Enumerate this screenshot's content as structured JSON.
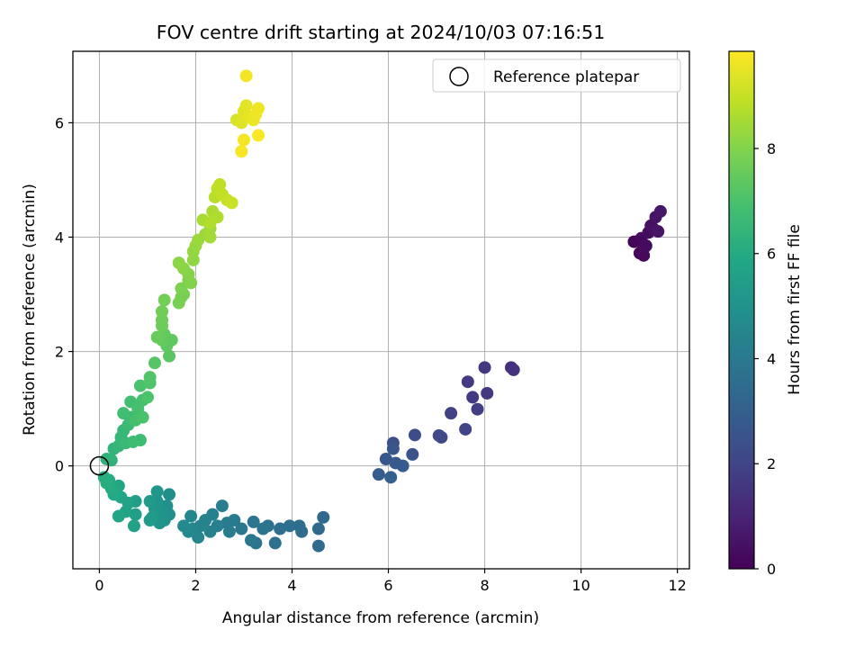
{
  "chart_data": {
    "type": "scatter",
    "title": "FOV centre drift starting at 2024/10/03 07:16:51",
    "xlabel": "Angular distance from reference (arcmin)",
    "ylabel": "Rotation from reference (arcmin)",
    "xlim": [
      -0.55,
      12.25
    ],
    "ylim": [
      -1.8,
      7.25
    ],
    "xticks": [
      0,
      2,
      4,
      6,
      8,
      10,
      12
    ],
    "yticks": [
      0,
      2,
      4,
      6
    ],
    "grid": true,
    "legend": {
      "placement": "top-right",
      "entries": [
        "Reference platepar"
      ]
    },
    "reference_point": {
      "label": "Reference platepar",
      "x": 0,
      "y": 0
    },
    "colorbar": {
      "label": "Hours from first FF file",
      "colormap": "viridis",
      "range": [
        0,
        9.85
      ],
      "ticks": [
        0,
        2,
        4,
        6,
        8
      ]
    },
    "points": [
      {
        "x": 11.1,
        "y": 3.92,
        "c": 0.1
      },
      {
        "x": 11.25,
        "y": 3.98,
        "c": 0.2
      },
      {
        "x": 11.3,
        "y": 3.8,
        "c": 0.3
      },
      {
        "x": 11.22,
        "y": 3.72,
        "c": 0.15
      },
      {
        "x": 11.3,
        "y": 3.68,
        "c": 0.25
      },
      {
        "x": 11.4,
        "y": 4.08,
        "c": 0.35
      },
      {
        "x": 11.45,
        "y": 4.2,
        "c": 0.4
      },
      {
        "x": 11.5,
        "y": 4.15,
        "c": 0.45
      },
      {
        "x": 11.55,
        "y": 4.35,
        "c": 0.5
      },
      {
        "x": 11.65,
        "y": 4.45,
        "c": 0.6
      },
      {
        "x": 11.6,
        "y": 4.1,
        "c": 0.55
      },
      {
        "x": 11.35,
        "y": 3.85,
        "c": 0.3
      },
      {
        "x": 8.55,
        "y": 1.72,
        "c": 1.4
      },
      {
        "x": 8.6,
        "y": 1.68,
        "c": 1.45
      },
      {
        "x": 8.0,
        "y": 1.72,
        "c": 1.55
      },
      {
        "x": 7.65,
        "y": 1.47,
        "c": 1.65
      },
      {
        "x": 8.05,
        "y": 1.27,
        "c": 1.6
      },
      {
        "x": 7.75,
        "y": 1.2,
        "c": 1.7
      },
      {
        "x": 7.85,
        "y": 0.99,
        "c": 1.8
      },
      {
        "x": 7.3,
        "y": 0.92,
        "c": 1.9
      },
      {
        "x": 7.6,
        "y": 0.64,
        "c": 2.0
      },
      {
        "x": 7.05,
        "y": 0.53,
        "c": 2.1
      },
      {
        "x": 7.1,
        "y": 0.5,
        "c": 2.15
      },
      {
        "x": 6.55,
        "y": 0.54,
        "c": 2.3
      },
      {
        "x": 6.5,
        "y": 0.2,
        "c": 2.5
      },
      {
        "x": 6.1,
        "y": 0.4,
        "c": 2.4
      },
      {
        "x": 6.1,
        "y": 0.3,
        "c": 2.6
      },
      {
        "x": 5.95,
        "y": 0.12,
        "c": 2.7
      },
      {
        "x": 6.15,
        "y": 0.05,
        "c": 2.75
      },
      {
        "x": 6.3,
        "y": 0.0,
        "c": 2.8
      },
      {
        "x": 5.8,
        "y": -0.15,
        "c": 2.9
      },
      {
        "x": 6.05,
        "y": -0.2,
        "c": 3.0
      },
      {
        "x": 4.65,
        "y": -0.9,
        "c": 3.3
      },
      {
        "x": 4.55,
        "y": -1.1,
        "c": 3.35
      },
      {
        "x": 4.55,
        "y": -1.4,
        "c": 3.4
      },
      {
        "x": 4.2,
        "y": -1.15,
        "c": 3.45
      },
      {
        "x": 4.15,
        "y": -1.05,
        "c": 3.5
      },
      {
        "x": 3.95,
        "y": -1.05,
        "c": 3.55
      },
      {
        "x": 3.75,
        "y": -1.1,
        "c": 3.6
      },
      {
        "x": 3.65,
        "y": -1.35,
        "c": 3.65
      },
      {
        "x": 3.5,
        "y": -1.05,
        "c": 3.7
      },
      {
        "x": 3.4,
        "y": -1.1,
        "c": 3.75
      },
      {
        "x": 3.25,
        "y": -1.35,
        "c": 3.8
      },
      {
        "x": 3.2,
        "y": -0.98,
        "c": 3.85
      },
      {
        "x": 3.15,
        "y": -1.3,
        "c": 3.9
      },
      {
        "x": 2.95,
        "y": -1.1,
        "c": 3.95
      },
      {
        "x": 2.8,
        "y": -0.95,
        "c": 4.0
      },
      {
        "x": 2.65,
        "y": -1.0,
        "c": 4.05
      },
      {
        "x": 2.7,
        "y": -1.15,
        "c": 4.1
      },
      {
        "x": 2.55,
        "y": -0.7,
        "c": 4.15
      },
      {
        "x": 2.45,
        "y": -1.05,
        "c": 4.2
      },
      {
        "x": 2.35,
        "y": -0.85,
        "c": 4.25
      },
      {
        "x": 2.3,
        "y": -1.15,
        "c": 4.3
      },
      {
        "x": 2.2,
        "y": -0.95,
        "c": 4.35
      },
      {
        "x": 2.1,
        "y": -1.05,
        "c": 4.4
      },
      {
        "x": 2.05,
        "y": -1.25,
        "c": 4.45
      },
      {
        "x": 1.95,
        "y": -1.1,
        "c": 4.5
      },
      {
        "x": 1.9,
        "y": -0.88,
        "c": 4.55
      },
      {
        "x": 1.85,
        "y": -1.15,
        "c": 4.6
      },
      {
        "x": 1.75,
        "y": -1.05,
        "c": 4.65
      },
      {
        "x": 1.45,
        "y": -0.5,
        "c": 4.8
      },
      {
        "x": 1.45,
        "y": -0.85,
        "c": 4.85
      },
      {
        "x": 1.4,
        "y": -0.7,
        "c": 4.9
      },
      {
        "x": 1.35,
        "y": -0.95,
        "c": 4.95
      },
      {
        "x": 1.3,
        "y": -0.8,
        "c": 5.0
      },
      {
        "x": 1.25,
        "y": -1.0,
        "c": 5.05
      },
      {
        "x": 1.2,
        "y": -0.62,
        "c": 5.1
      },
      {
        "x": 1.2,
        "y": -0.45,
        "c": 5.15
      },
      {
        "x": 1.15,
        "y": -0.75,
        "c": 5.2
      },
      {
        "x": 1.1,
        "y": -0.9,
        "c": 5.25
      },
      {
        "x": 1.05,
        "y": -0.62,
        "c": 5.3
      },
      {
        "x": 1.05,
        "y": -0.95,
        "c": 5.35
      },
      {
        "x": 0.75,
        "y": -0.62,
        "c": 5.5
      },
      {
        "x": 0.75,
        "y": -0.85,
        "c": 5.55
      },
      {
        "x": 0.72,
        "y": -1.05,
        "c": 5.6
      },
      {
        "x": 0.6,
        "y": -0.65,
        "c": 5.65
      },
      {
        "x": 0.55,
        "y": -0.8,
        "c": 5.7
      },
      {
        "x": 0.45,
        "y": -0.55,
        "c": 5.75
      },
      {
        "x": 0.4,
        "y": -0.88,
        "c": 5.8
      },
      {
        "x": 0.4,
        "y": -0.35,
        "c": 5.85
      },
      {
        "x": 0.35,
        "y": -0.45,
        "c": 5.9
      },
      {
        "x": 0.3,
        "y": -0.5,
        "c": 5.95
      },
      {
        "x": 0.25,
        "y": -0.4,
        "c": 6.0
      },
      {
        "x": 0.2,
        "y": -0.25,
        "c": 6.05
      },
      {
        "x": 0.15,
        "y": -0.3,
        "c": 6.1
      },
      {
        "x": 0.1,
        "y": -0.2,
        "c": 6.15
      },
      {
        "x": 0.15,
        "y": 0.12,
        "c": 6.3
      },
      {
        "x": 0.25,
        "y": 0.1,
        "c": 6.35
      },
      {
        "x": 0.3,
        "y": 0.3,
        "c": 6.4
      },
      {
        "x": 0.4,
        "y": 0.35,
        "c": 6.45
      },
      {
        "x": 0.45,
        "y": 0.5,
        "c": 6.5
      },
      {
        "x": 0.5,
        "y": 0.62,
        "c": 6.55
      },
      {
        "x": 0.55,
        "y": 0.4,
        "c": 6.6
      },
      {
        "x": 0.6,
        "y": 0.72,
        "c": 6.65
      },
      {
        "x": 0.65,
        "y": 0.85,
        "c": 6.7
      },
      {
        "x": 0.7,
        "y": 0.42,
        "c": 6.72
      },
      {
        "x": 0.85,
        "y": 0.45,
        "c": 6.75
      },
      {
        "x": 0.5,
        "y": 0.92,
        "c": 6.8
      },
      {
        "x": 0.65,
        "y": 1.12,
        "c": 6.85
      },
      {
        "x": 0.75,
        "y": 0.8,
        "c": 6.9
      },
      {
        "x": 0.8,
        "y": 1.0,
        "c": 6.92
      },
      {
        "x": 0.9,
        "y": 1.15,
        "c": 6.95
      },
      {
        "x": 0.85,
        "y": 1.4,
        "c": 7.0
      },
      {
        "x": 0.9,
        "y": 0.85,
        "c": 7.02
      },
      {
        "x": 1.0,
        "y": 1.2,
        "c": 7.05
      },
      {
        "x": 1.05,
        "y": 1.45,
        "c": 7.1
      },
      {
        "x": 1.05,
        "y": 1.55,
        "c": 7.15
      },
      {
        "x": 1.15,
        "y": 1.8,
        "c": 7.2
      },
      {
        "x": 1.45,
        "y": 1.92,
        "c": 7.3
      },
      {
        "x": 1.4,
        "y": 2.1,
        "c": 7.35
      },
      {
        "x": 1.5,
        "y": 2.2,
        "c": 7.4
      },
      {
        "x": 1.35,
        "y": 2.3,
        "c": 7.45
      },
      {
        "x": 1.3,
        "y": 2.2,
        "c": 7.5
      },
      {
        "x": 1.2,
        "y": 2.25,
        "c": 7.55
      },
      {
        "x": 1.3,
        "y": 2.45,
        "c": 7.6
      },
      {
        "x": 1.3,
        "y": 2.55,
        "c": 7.65
      },
      {
        "x": 1.3,
        "y": 2.7,
        "c": 7.7
      },
      {
        "x": 1.35,
        "y": 2.9,
        "c": 7.75
      },
      {
        "x": 1.65,
        "y": 2.85,
        "c": 7.8
      },
      {
        "x": 1.7,
        "y": 2.95,
        "c": 7.82
      },
      {
        "x": 1.75,
        "y": 3.0,
        "c": 7.85
      },
      {
        "x": 1.7,
        "y": 3.1,
        "c": 7.9
      },
      {
        "x": 1.85,
        "y": 3.25,
        "c": 7.95
      },
      {
        "x": 1.9,
        "y": 3.2,
        "c": 8.0
      },
      {
        "x": 1.85,
        "y": 3.35,
        "c": 8.05
      },
      {
        "x": 1.75,
        "y": 3.45,
        "c": 8.1
      },
      {
        "x": 1.65,
        "y": 3.55,
        "c": 8.15
      },
      {
        "x": 1.95,
        "y": 3.6,
        "c": 8.2
      },
      {
        "x": 1.95,
        "y": 3.75,
        "c": 8.25
      },
      {
        "x": 2.0,
        "y": 3.85,
        "c": 8.3
      },
      {
        "x": 2.05,
        "y": 3.95,
        "c": 8.35
      },
      {
        "x": 2.2,
        "y": 4.05,
        "c": 8.4
      },
      {
        "x": 2.3,
        "y": 4.15,
        "c": 8.45
      },
      {
        "x": 2.3,
        "y": 4.0,
        "c": 8.5
      },
      {
        "x": 2.15,
        "y": 4.3,
        "c": 8.55
      },
      {
        "x": 2.35,
        "y": 4.45,
        "c": 8.6
      },
      {
        "x": 2.45,
        "y": 4.35,
        "c": 8.65
      },
      {
        "x": 2.3,
        "y": 4.25,
        "c": 8.7
      },
      {
        "x": 2.4,
        "y": 4.7,
        "c": 8.8
      },
      {
        "x": 2.45,
        "y": 4.85,
        "c": 8.85
      },
      {
        "x": 2.5,
        "y": 4.92,
        "c": 8.9
      },
      {
        "x": 2.55,
        "y": 4.75,
        "c": 8.95
      },
      {
        "x": 2.65,
        "y": 4.65,
        "c": 9.0
      },
      {
        "x": 2.75,
        "y": 4.6,
        "c": 9.05
      },
      {
        "x": 2.85,
        "y": 6.05,
        "c": 9.3
      },
      {
        "x": 2.95,
        "y": 6.0,
        "c": 9.35
      },
      {
        "x": 3.0,
        "y": 6.2,
        "c": 9.4
      },
      {
        "x": 3.05,
        "y": 6.3,
        "c": 9.45
      },
      {
        "x": 3.1,
        "y": 6.1,
        "c": 9.5
      },
      {
        "x": 3.2,
        "y": 6.05,
        "c": 9.55
      },
      {
        "x": 3.25,
        "y": 6.15,
        "c": 9.6
      },
      {
        "x": 3.3,
        "y": 6.25,
        "c": 9.65
      },
      {
        "x": 3.05,
        "y": 6.82,
        "c": 9.7
      },
      {
        "x": 3.0,
        "y": 5.7,
        "c": 9.72
      },
      {
        "x": 2.95,
        "y": 5.5,
        "c": 9.75
      },
      {
        "x": 3.3,
        "y": 5.78,
        "c": 9.8
      }
    ]
  }
}
